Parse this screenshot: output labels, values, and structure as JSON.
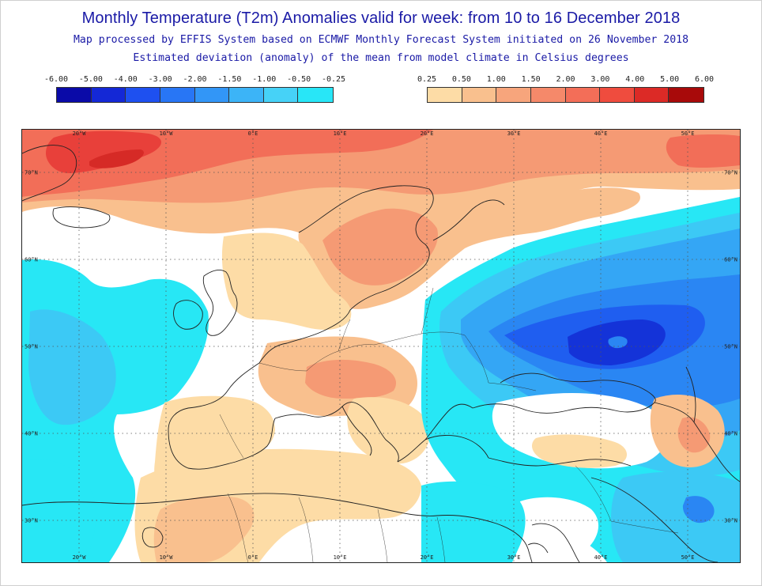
{
  "title": "Monthly Temperature (T2m) Anomalies valid for week: from 10 to 16 December 2018",
  "subtitle1": "Map processed by EFFIS System based on ECMWF Monthly Forecast System initiated on 26 November 2018",
  "subtitle2": "Estimated deviation (anomaly) of the mean from model climate in Celsius degrees",
  "legend": {
    "negative_labels": [
      "-6.00",
      "-5.00",
      "-4.00",
      "-3.00",
      "-2.00",
      "-1.50",
      "-1.00",
      "-0.50",
      "-0.25"
    ],
    "negative_colors": [
      "#0a0aa8",
      "#1428d6",
      "#1e50f0",
      "#2876f5",
      "#3296f7",
      "#3cb4f7",
      "#46d2f7",
      "#28e6f7"
    ],
    "positive_labels": [
      "0.25",
      "0.50",
      "1.00",
      "1.50",
      "2.00",
      "3.00",
      "4.00",
      "5.00",
      "6.00"
    ],
    "positive_colors": [
      "#fddca6",
      "#f9c08e",
      "#f7a57c",
      "#f5896a",
      "#f36e58",
      "#ef4c3e",
      "#dc2a26",
      "#a80a0a"
    ]
  },
  "map": {
    "lon_labels": [
      "20°W",
      "10°W",
      "0°E",
      "10°E",
      "20°E",
      "30°E",
      "40°E",
      "50°E"
    ],
    "lat_labels": [
      "70°N",
      "60°N",
      "50°N",
      "40°N",
      "30°N"
    ],
    "colors": {
      "neutral": "#ffffff",
      "cyan1": "#27e7f5",
      "cyan2": "#3cc9f5",
      "blue1": "#34a6f5",
      "blue2": "#2a86f3",
      "blue3": "#1f5ef0",
      "blue4": "#1433d8",
      "warm1": "#fddca6",
      "warm2": "#f9c08e",
      "warm3": "#f59a74",
      "warm4": "#f26e58",
      "warm5": "#e8403a",
      "warm6": "#d62a26",
      "coast": "#222222",
      "grid": "#444444"
    }
  }
}
